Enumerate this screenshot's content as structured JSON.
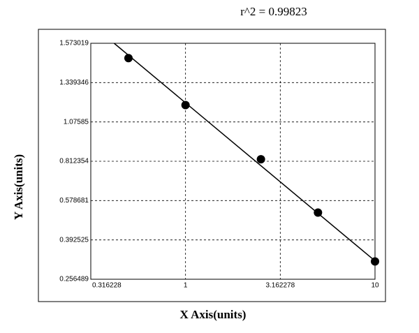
{
  "chart_data": {
    "type": "scatter",
    "title": "r^2 = 0.99823",
    "x_label": "X Axis(units)",
    "y_label": "Y Axis(units)",
    "x_log": true,
    "grid": true,
    "x": [
      0.5,
      1,
      2.5,
      5,
      10
    ],
    "y": [
      1.485,
      1.189,
      0.826,
      0.522,
      0.318
    ],
    "color": "#000000",
    "fit": {
      "x": [
        0.42,
        10
      ],
      "y": [
        1.573019,
        0.32
      ]
    },
    "xlim": [
      0.316228,
      10
    ],
    "xticks": [
      0.316228,
      1,
      3.162278,
      10
    ],
    "ylim": [
      0.256489,
      1.573019
    ],
    "yticks": [
      0.256489,
      0.392525,
      0.578681,
      0.812354,
      1.07585,
      1.339346,
      1.573019
    ]
  }
}
